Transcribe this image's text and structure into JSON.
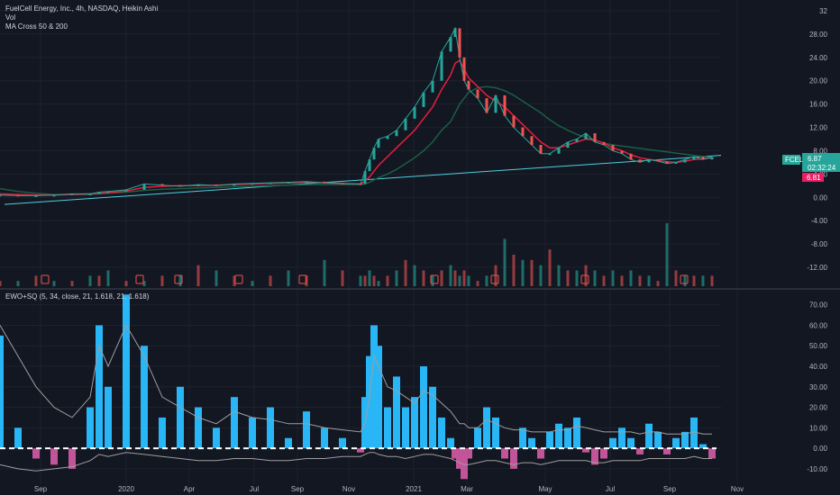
{
  "legend": {
    "symbol_line": "FuelCell Energy, Inc., 4h, NASDAQ, Heikin Ashi",
    "vol": "Vol",
    "ma": "MA Cross 50 & 200",
    "ewo": "EWO+SQ (5, 34, close, 21, 1.618, 21, 1.618)"
  },
  "price_badges": {
    "ticker": "FCEL",
    "last_price": "6.87",
    "countdown": "02:32:24",
    "ma_value": "6.81"
  },
  "colors": {
    "background": "#131722",
    "grid": "#1e222d",
    "up": "#26a69a",
    "down": "#ef5350",
    "ma_fast": "#e91e3c",
    "ma_slow": "#1b5e45",
    "trendline": "#4dd0e1",
    "ewo_pos": "#29b6f6",
    "ewo_neg": "#c2559a",
    "signal": "#9e9e9e"
  },
  "chart_data": [
    {
      "type": "line",
      "title": "FuelCell Energy, Inc., 4h, NASDAQ, Heikin Ashi",
      "xlabel": "",
      "ylabel": "",
      "x_ticks": [
        "Sep",
        "2020",
        "Apr",
        "Jul",
        "Sep",
        "Nov",
        "2021",
        "Mar",
        "May",
        "Jul",
        "Sep",
        "Nov"
      ],
      "y_ticks": [
        "32",
        "28.00",
        "24.00",
        "20.00",
        "16.00",
        "12.00",
        "8.00",
        "4.00",
        "0.00",
        "-4.00",
        "-8.00",
        "-12.00"
      ],
      "ylim": [
        -14,
        32
      ],
      "x": [
        0,
        20,
        40,
        60,
        80,
        100,
        110,
        120,
        140,
        160,
        180,
        200,
        220,
        240,
        260,
        280,
        300,
        320,
        340,
        360,
        380,
        400,
        405,
        410,
        415,
        420,
        430,
        440,
        450,
        460,
        470,
        480,
        490,
        500,
        505,
        510,
        515,
        520,
        530,
        540,
        550,
        560,
        570,
        580,
        590,
        600,
        610,
        620,
        630,
        640,
        650,
        660,
        670,
        680,
        690,
        700,
        710,
        720,
        730,
        740,
        750,
        760,
        770,
        780,
        790
      ],
      "series": [
        {
          "name": "Heikin Ashi close",
          "values": [
            0.4,
            0.3,
            0.3,
            0.4,
            0.6,
            0.6,
            0.9,
            1.0,
            1.3,
            2.3,
            2.1,
            1.9,
            2.2,
            2.0,
            2.3,
            2.4,
            2.5,
            2.6,
            2.7,
            2.5,
            2.4,
            2.3,
            4.5,
            6.5,
            8.5,
            10.0,
            10.5,
            11.5,
            13.5,
            15.5,
            18.0,
            20.0,
            25.0,
            27.5,
            29.0,
            24.0,
            20.0,
            18.5,
            17.0,
            14.5,
            17.5,
            14.0,
            12.0,
            10.5,
            9.0,
            7.5,
            7.5,
            8.5,
            9.5,
            10.0,
            11.0,
            9.5,
            9.0,
            8.0,
            7.5,
            6.5,
            6.0,
            6.5,
            6.2,
            5.8,
            6.0,
            6.5,
            7.0,
            6.5,
            6.9
          ]
        },
        {
          "name": "MA 50",
          "values": [
            0.6,
            0.5,
            0.4,
            0.4,
            0.5,
            0.6,
            0.7,
            0.8,
            1.1,
            1.7,
            1.9,
            2.0,
            2.0,
            2.1,
            2.2,
            2.3,
            2.4,
            2.5,
            2.6,
            2.5,
            2.4,
            2.3,
            2.8,
            3.5,
            4.5,
            5.5,
            7.0,
            8.5,
            10.0,
            11.5,
            13.5,
            15.5,
            18.5,
            21.0,
            23.0,
            23.5,
            22.0,
            20.5,
            19.0,
            17.5,
            16.5,
            15.5,
            14.0,
            12.5,
            11.0,
            9.5,
            8.5,
            8.5,
            9.0,
            9.5,
            10.0,
            9.8,
            9.3,
            8.5,
            8.0,
            7.3,
            6.8,
            6.5,
            6.3,
            6.1,
            6.0,
            6.2,
            6.5,
            6.6,
            6.8
          ]
        },
        {
          "name": "MA 200",
          "values": [
            1.5,
            1.0,
            0.7,
            0.5,
            0.5,
            0.5,
            0.6,
            0.7,
            0.9,
            1.2,
            1.4,
            1.5,
            1.6,
            1.7,
            1.8,
            1.9,
            2.0,
            2.1,
            2.2,
            2.2,
            2.2,
            2.2,
            2.3,
            2.6,
            3.0,
            3.4,
            4.0,
            4.8,
            5.8,
            6.8,
            8.0,
            9.5,
            11.5,
            13.0,
            14.5,
            16.0,
            17.0,
            18.0,
            18.8,
            19.0,
            18.8,
            18.3,
            17.5,
            16.5,
            15.5,
            14.5,
            13.3,
            12.3,
            11.5,
            10.8,
            10.3,
            9.8,
            9.3,
            9.0,
            8.8,
            8.6,
            8.4,
            8.2,
            8.0,
            7.8,
            7.6,
            7.4,
            7.2,
            7.0,
            6.8
          ]
        }
      ],
      "trendline": {
        "x": [
          5,
          800
        ],
        "y": [
          -1.2,
          7.2
        ]
      },
      "earnings_markers_x": [
        50,
        155,
        198,
        265,
        336,
        482,
        549,
        649,
        759
      ]
    },
    {
      "type": "bar",
      "title": "Vol",
      "values": [
        1,
        1,
        2,
        1,
        1,
        2,
        2,
        3,
        1,
        1,
        2,
        2,
        4,
        3,
        2,
        1,
        2,
        3,
        2,
        5,
        3,
        2,
        2,
        3,
        2,
        1,
        2,
        3,
        5,
        4,
        3,
        2,
        3,
        4,
        3,
        2,
        3,
        2,
        1,
        2,
        4,
        9,
        6,
        5,
        5,
        4,
        7,
        4,
        3,
        3,
        4,
        3,
        2,
        3,
        2,
        3,
        2,
        2,
        1,
        12,
        3,
        2,
        2,
        2,
        2
      ]
    },
    {
      "type": "bar",
      "title": "EWO+SQ (5, 34, close, 21, 1.618, 21, 1.618)",
      "y_ticks": [
        "70.00",
        "60.00",
        "50.00",
        "40.00",
        "30.00",
        "20.00",
        "10.00",
        "0.00",
        "-10.00"
      ],
      "ylim": [
        -14,
        76
      ],
      "x": [
        0,
        20,
        40,
        60,
        80,
        100,
        110,
        120,
        140,
        160,
        180,
        200,
        220,
        240,
        260,
        280,
        300,
        320,
        340,
        360,
        380,
        400,
        405,
        410,
        415,
        420,
        430,
        440,
        450,
        460,
        470,
        480,
        490,
        500,
        505,
        510,
        515,
        520,
        530,
        540,
        550,
        560,
        570,
        580,
        590,
        600,
        610,
        620,
        630,
        640,
        650,
        660,
        670,
        680,
        690,
        700,
        710,
        720,
        730,
        740,
        750,
        760,
        770,
        780,
        790
      ],
      "series": [
        {
          "name": "EWO",
          "values": [
            55,
            10,
            -5,
            -8,
            -10,
            20,
            60,
            30,
            75,
            50,
            15,
            30,
            20,
            10,
            25,
            15,
            20,
            5,
            18,
            10,
            5,
            -2,
            25,
            45,
            60,
            50,
            20,
            35,
            20,
            25,
            40,
            30,
            15,
            5,
            -5,
            -10,
            -15,
            -5,
            10,
            20,
            15,
            -5,
            -10,
            10,
            5,
            -5,
            8,
            12,
            10,
            15,
            -2,
            -8,
            -5,
            5,
            10,
            5,
            -3,
            12,
            8,
            -3,
            5,
            8,
            15,
            2,
            -5
          ]
        },
        {
          "name": "Signal upper",
          "values": [
            60,
            45,
            30,
            20,
            15,
            25,
            50,
            40,
            60,
            45,
            25,
            20,
            15,
            12,
            18,
            15,
            14,
            12,
            12,
            10,
            9,
            8,
            12,
            25,
            45,
            40,
            30,
            28,
            25,
            22,
            28,
            26,
            22,
            18,
            15,
            12,
            12,
            10,
            10,
            14,
            12,
            10,
            9,
            9,
            8,
            8,
            8,
            9,
            9,
            11,
            10,
            9,
            8,
            8,
            8,
            8,
            7,
            8,
            8,
            7,
            7,
            7,
            8,
            7,
            7
          ]
        },
        {
          "name": "Signal lower",
          "values": [
            -8,
            -10,
            -11,
            -10,
            -9,
            -6,
            -3,
            -4,
            -2,
            -3,
            -4,
            -5,
            -6,
            -6,
            -5,
            -5,
            -6,
            -6,
            -5,
            -5,
            -4,
            -4,
            -3,
            -2,
            -2,
            -3,
            -4,
            -4,
            -5,
            -4,
            -3,
            -3,
            -4,
            -5,
            -6,
            -7,
            -8,
            -8,
            -7,
            -6,
            -6,
            -7,
            -8,
            -7,
            -7,
            -8,
            -7,
            -6,
            -6,
            -6,
            -6,
            -7,
            -7,
            -6,
            -6,
            -6,
            -6,
            -5,
            -5,
            -5,
            -5,
            -5,
            -4,
            -5,
            -5
          ]
        }
      ]
    }
  ]
}
